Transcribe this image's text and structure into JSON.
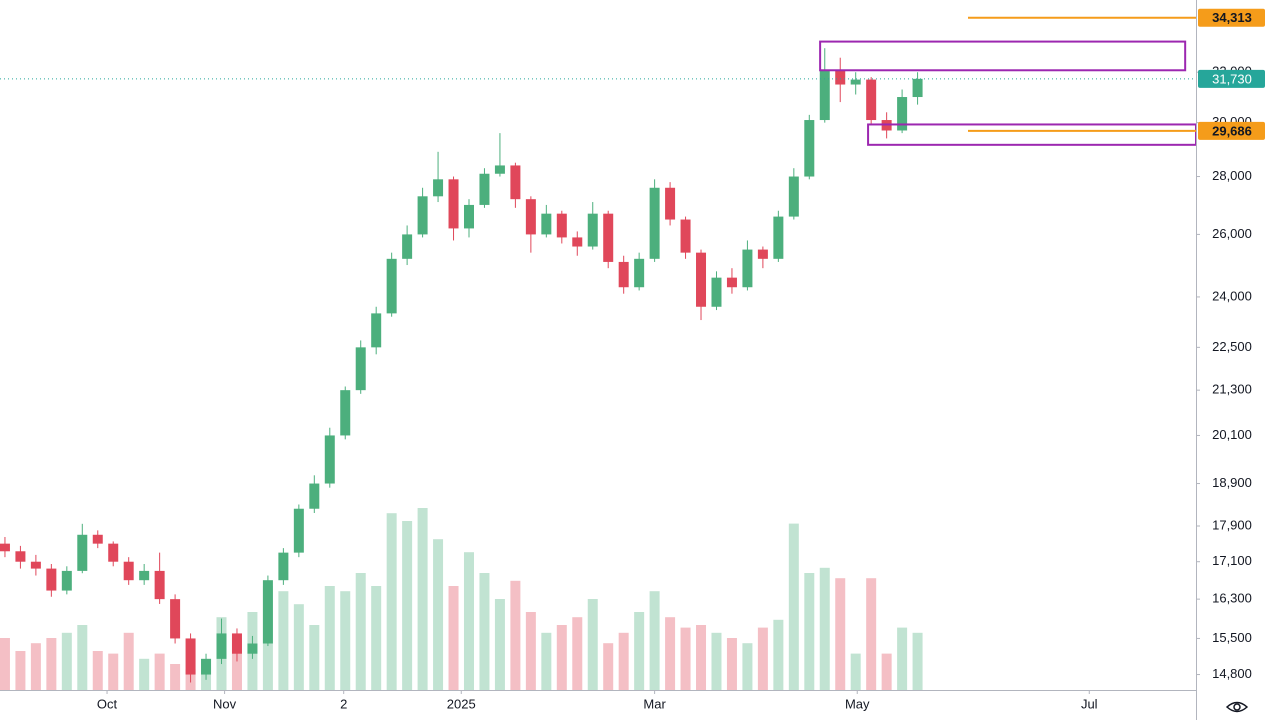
{
  "chart_data": {
    "type": "candlestick",
    "log_scale": true,
    "ylim": [
      14510,
      35100
    ],
    "yticks": [
      {
        "value": 14800,
        "label": "14,800"
      },
      {
        "value": 15500,
        "label": "15,500"
      },
      {
        "value": 16300,
        "label": "16,300"
      },
      {
        "value": 17100,
        "label": "17,100"
      },
      {
        "value": 17900,
        "label": "17,900"
      },
      {
        "value": 18900,
        "label": "18,900"
      },
      {
        "value": 20100,
        "label": "20,100"
      },
      {
        "value": 21300,
        "label": "21,300"
      },
      {
        "value": 22500,
        "label": "22,500"
      },
      {
        "value": 24000,
        "label": "24,000"
      },
      {
        "value": 26000,
        "label": "26,000"
      },
      {
        "value": 28000,
        "label": "28,000"
      },
      {
        "value": 30000,
        "label": "30,000"
      },
      {
        "value": 32000,
        "label": "32,000"
      }
    ],
    "xlim": [
      -0.32,
      77.0
    ],
    "xticks": [
      {
        "value": 6.6,
        "label": "Oct"
      },
      {
        "value": 14.2,
        "label": "Nov"
      },
      {
        "value": 21.9,
        "label": "2"
      },
      {
        "value": 29.5,
        "label": "2025"
      },
      {
        "value": 42.0,
        "label": "Mar"
      },
      {
        "value": 55.1,
        "label": "May"
      },
      {
        "value": 70.1,
        "label": "Jul"
      }
    ],
    "up_color": "#4caf7d",
    "down_color": "#e0475a",
    "candles": [
      [
        17500,
        17650,
        17200,
        17330
      ],
      [
        17330,
        17450,
        16950,
        17100
      ],
      [
        17100,
        17250,
        16800,
        16950
      ],
      [
        16950,
        17050,
        16350,
        16480
      ],
      [
        16480,
        17000,
        16400,
        16900
      ],
      [
        16900,
        17950,
        16850,
        17700
      ],
      [
        17700,
        17800,
        17400,
        17500
      ],
      [
        17500,
        17550,
        17000,
        17100
      ],
      [
        17100,
        17200,
        16600,
        16700
      ],
      [
        16700,
        17050,
        16600,
        16900
      ],
      [
        16900,
        17300,
        16200,
        16300
      ],
      [
        16300,
        16400,
        15400,
        15500
      ],
      [
        15500,
        15600,
        14650,
        14800
      ],
      [
        14800,
        15200,
        14700,
        15100
      ],
      [
        15100,
        15900,
        15000,
        15600
      ],
      [
        15600,
        15700,
        15050,
        15200
      ],
      [
        15200,
        15550,
        15100,
        15400
      ],
      [
        15400,
        16800,
        15350,
        16700
      ],
      [
        16700,
        17400,
        16600,
        17300
      ],
      [
        17300,
        18400,
        17200,
        18300
      ],
      [
        18300,
        19100,
        18200,
        18900
      ],
      [
        18900,
        20300,
        18800,
        20100
      ],
      [
        20100,
        21400,
        20000,
        21300
      ],
      [
        21300,
        22700,
        21200,
        22500
      ],
      [
        22500,
        23700,
        22300,
        23500
      ],
      [
        23500,
        25400,
        23400,
        25200
      ],
      [
        25200,
        26300,
        25000,
        26000
      ],
      [
        26000,
        27600,
        25900,
        27300
      ],
      [
        27300,
        28900,
        27100,
        27900
      ],
      [
        27900,
        28000,
        25800,
        26200
      ],
      [
        26200,
        27200,
        25900,
        27000
      ],
      [
        27000,
        28300,
        26900,
        28100
      ],
      [
        28100,
        29600,
        28000,
        28400
      ],
      [
        28400,
        28500,
        26900,
        27200
      ],
      [
        27200,
        27300,
        25400,
        26000
      ],
      [
        26000,
        27000,
        25900,
        26700
      ],
      [
        26700,
        26800,
        25700,
        25900
      ],
      [
        25900,
        26100,
        25300,
        25600
      ],
      [
        25600,
        27100,
        25500,
        26700
      ],
      [
        26700,
        26800,
        24900,
        25100
      ],
      [
        25100,
        25300,
        24100,
        24300
      ],
      [
        24300,
        25400,
        24200,
        25200
      ],
      [
        25200,
        27900,
        25100,
        27600
      ],
      [
        27600,
        27800,
        26300,
        26500
      ],
      [
        26500,
        26600,
        25200,
        25400
      ],
      [
        25400,
        25500,
        23300,
        23700
      ],
      [
        23700,
        24800,
        23600,
        24600
      ],
      [
        24600,
        24900,
        24100,
        24300
      ],
      [
        24300,
        25800,
        24200,
        25500
      ],
      [
        25500,
        25600,
        24900,
        25200
      ],
      [
        25200,
        26800,
        25100,
        26600
      ],
      [
        26600,
        28300,
        26500,
        28000
      ],
      [
        28000,
        30300,
        27900,
        30100
      ],
      [
        30100,
        33000,
        30000,
        32100
      ],
      [
        32100,
        32600,
        30800,
        31500
      ],
      [
        31500,
        32000,
        31100,
        31700
      ],
      [
        31700,
        31800,
        29900,
        30100
      ],
      [
        30100,
        30400,
        29400,
        29700
      ],
      [
        29700,
        31300,
        29600,
        31000
      ],
      [
        31000,
        32000,
        30700,
        31730
      ]
    ],
    "volume_lim": [
      0,
      100
    ],
    "volume": [
      20,
      15,
      18,
      20,
      22,
      25,
      15,
      14,
      22,
      12,
      14,
      10,
      8,
      12,
      28,
      20,
      30,
      40,
      38,
      33,
      25,
      40,
      38,
      45,
      40,
      68,
      65,
      70,
      58,
      40,
      53,
      45,
      35,
      42,
      30,
      22,
      25,
      28,
      35,
      18,
      22,
      30,
      38,
      28,
      24,
      25,
      22,
      20,
      18,
      24,
      27,
      64,
      45,
      47,
      43,
      14,
      43,
      14,
      24,
      22
    ],
    "last_price": {
      "value": 31730,
      "label": "31,730",
      "color": "#26a69a"
    },
    "levels": [
      {
        "value": 34313,
        "label": "34,313"
      },
      {
        "value": 29686,
        "label": "29,686"
      }
    ],
    "level_color": "#f59c1a",
    "zones": [
      {
        "x": [
          52.7,
          76.3
        ],
        "y": [
          32080,
          33280
        ]
      },
      {
        "x": [
          55.8,
          77.0
        ],
        "y": [
          29160,
          29930
        ]
      }
    ],
    "zone_color": "#9c27b0"
  }
}
